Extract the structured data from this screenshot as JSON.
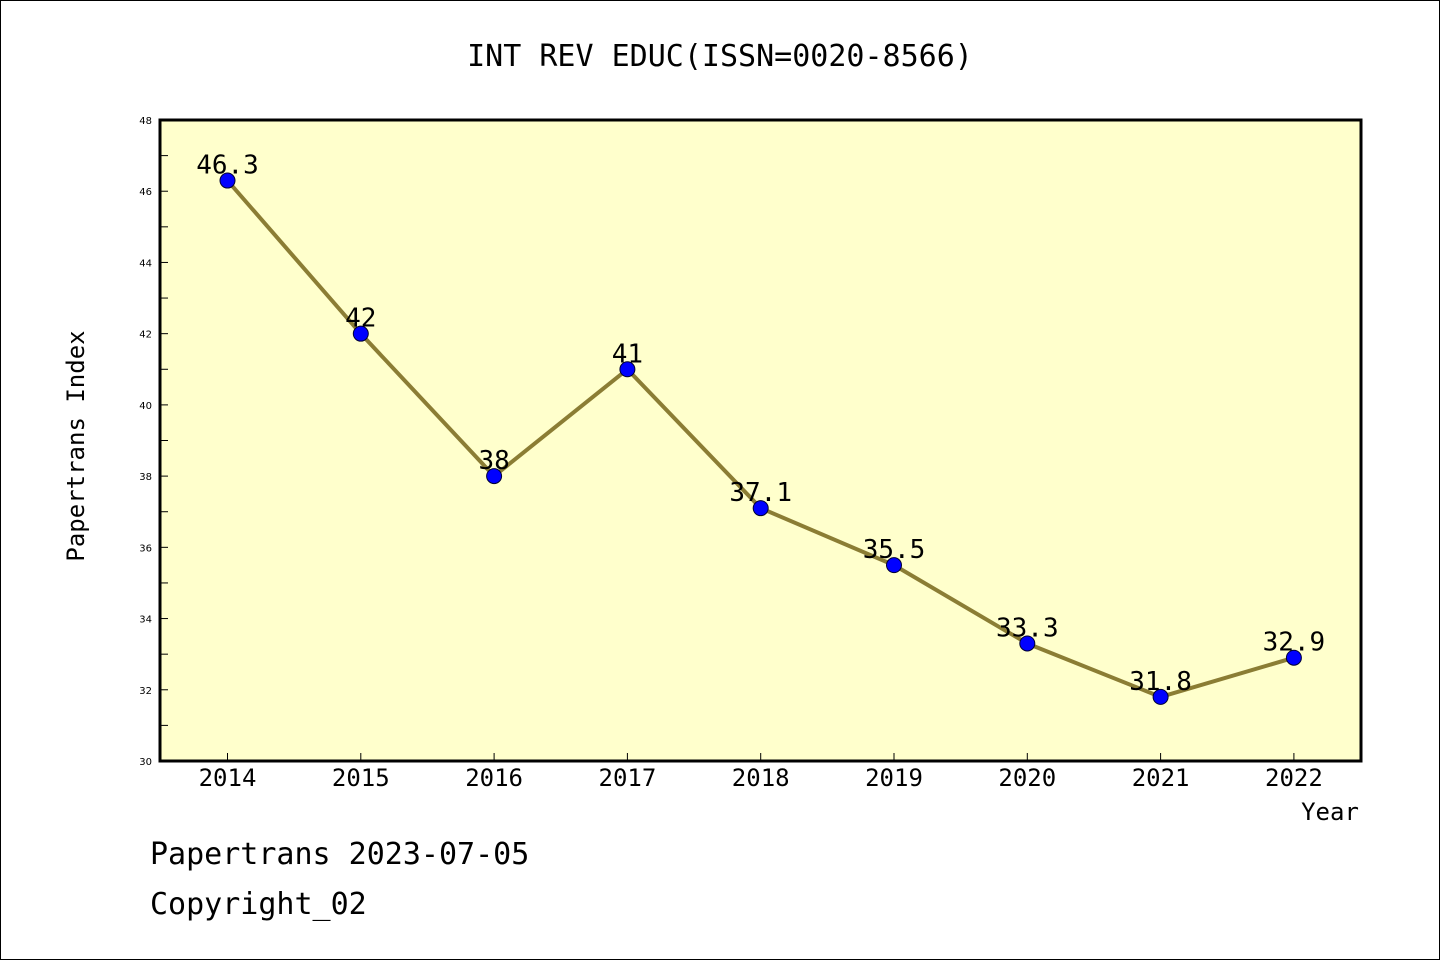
{
  "chart_data": {
    "type": "line",
    "title": "INT REV EDUC(ISSN=0020-8566)",
    "xlabel": "Year",
    "ylabel": "Papertrans Index",
    "categories": [
      "2014",
      "2015",
      "2016",
      "2017",
      "2018",
      "2019",
      "2020",
      "2021",
      "2022"
    ],
    "values": [
      46.3,
      42,
      38,
      41,
      37.1,
      35.5,
      33.3,
      31.8,
      32.9
    ],
    "data_labels": [
      "46.3",
      "42",
      "38",
      "41",
      "37.1",
      "35.5",
      "33.3",
      "31.8",
      "32.9"
    ],
    "ylim": [
      30,
      48
    ],
    "yticks": [
      "30",
      "32",
      "34",
      "36",
      "38",
      "40",
      "42",
      "44",
      "46",
      "48"
    ],
    "grid": false,
    "colors": {
      "plot_background": "#ffffcc",
      "line": "#8b7d34",
      "marker": "#0000ff"
    }
  },
  "footer": {
    "line1": "Papertrans 2023-07-05",
    "line2": "Copyright_02"
  }
}
